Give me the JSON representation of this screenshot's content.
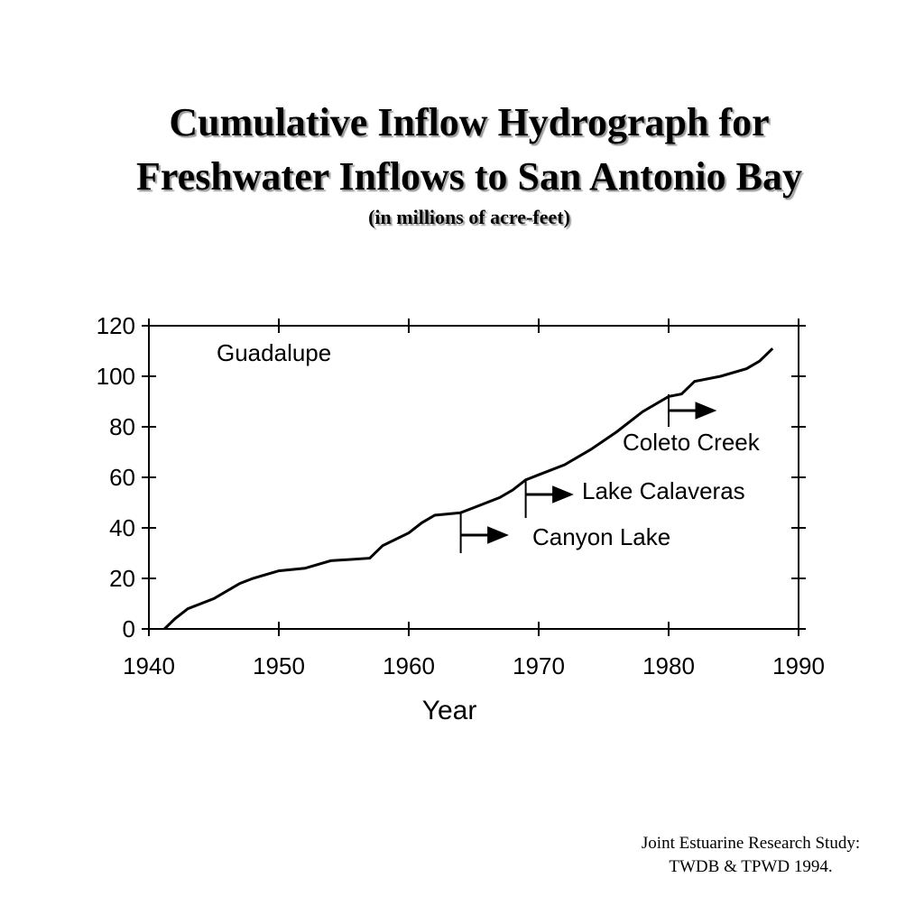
{
  "title": "Cumulative Inflow Hydrograph for",
  "title_line2": "Freshwater Inflows to San Antonio Bay",
  "subtitle": "(in millions of acre-feet)",
  "chart_data": {
    "type": "line",
    "xlabel": "Year",
    "x": [
      1941.2,
      1942,
      1943,
      1945,
      1947,
      1948,
      1950,
      1952,
      1954,
      1957,
      1958,
      1960,
      1961,
      1962,
      1964,
      1965,
      1967,
      1968,
      1969,
      1970,
      1972,
      1974,
      1976,
      1978,
      1980,
      1981,
      1982,
      1984,
      1986,
      1987,
      1988
    ],
    "series": [
      {
        "name": "Guadalupe",
        "color": "#000000",
        "values": [
          0,
          4,
          8,
          12,
          18,
          20,
          23,
          24,
          27,
          28,
          33,
          38,
          42,
          45,
          46,
          48,
          52,
          55,
          59,
          61,
          65,
          71,
          78,
          86,
          92,
          93,
          98,
          100,
          103,
          106,
          111
        ]
      }
    ],
    "annotations": [
      {
        "text": "Coleto Creek",
        "year": 1980
      },
      {
        "text": "Lake Calaveras",
        "year": 1969
      },
      {
        "text": "Canyon Lake",
        "year": 1964
      }
    ],
    "xlim": [
      1940,
      1990
    ],
    "xticks": [
      1940,
      1950,
      1960,
      1970,
      1980,
      1990
    ],
    "ylim": [
      0,
      120
    ],
    "yticks": [
      0,
      20,
      40,
      60,
      80,
      100,
      120
    ]
  },
  "footer": [
    "Joint Estuarine Research Study:",
    "TWDB & TPWD 1994."
  ]
}
